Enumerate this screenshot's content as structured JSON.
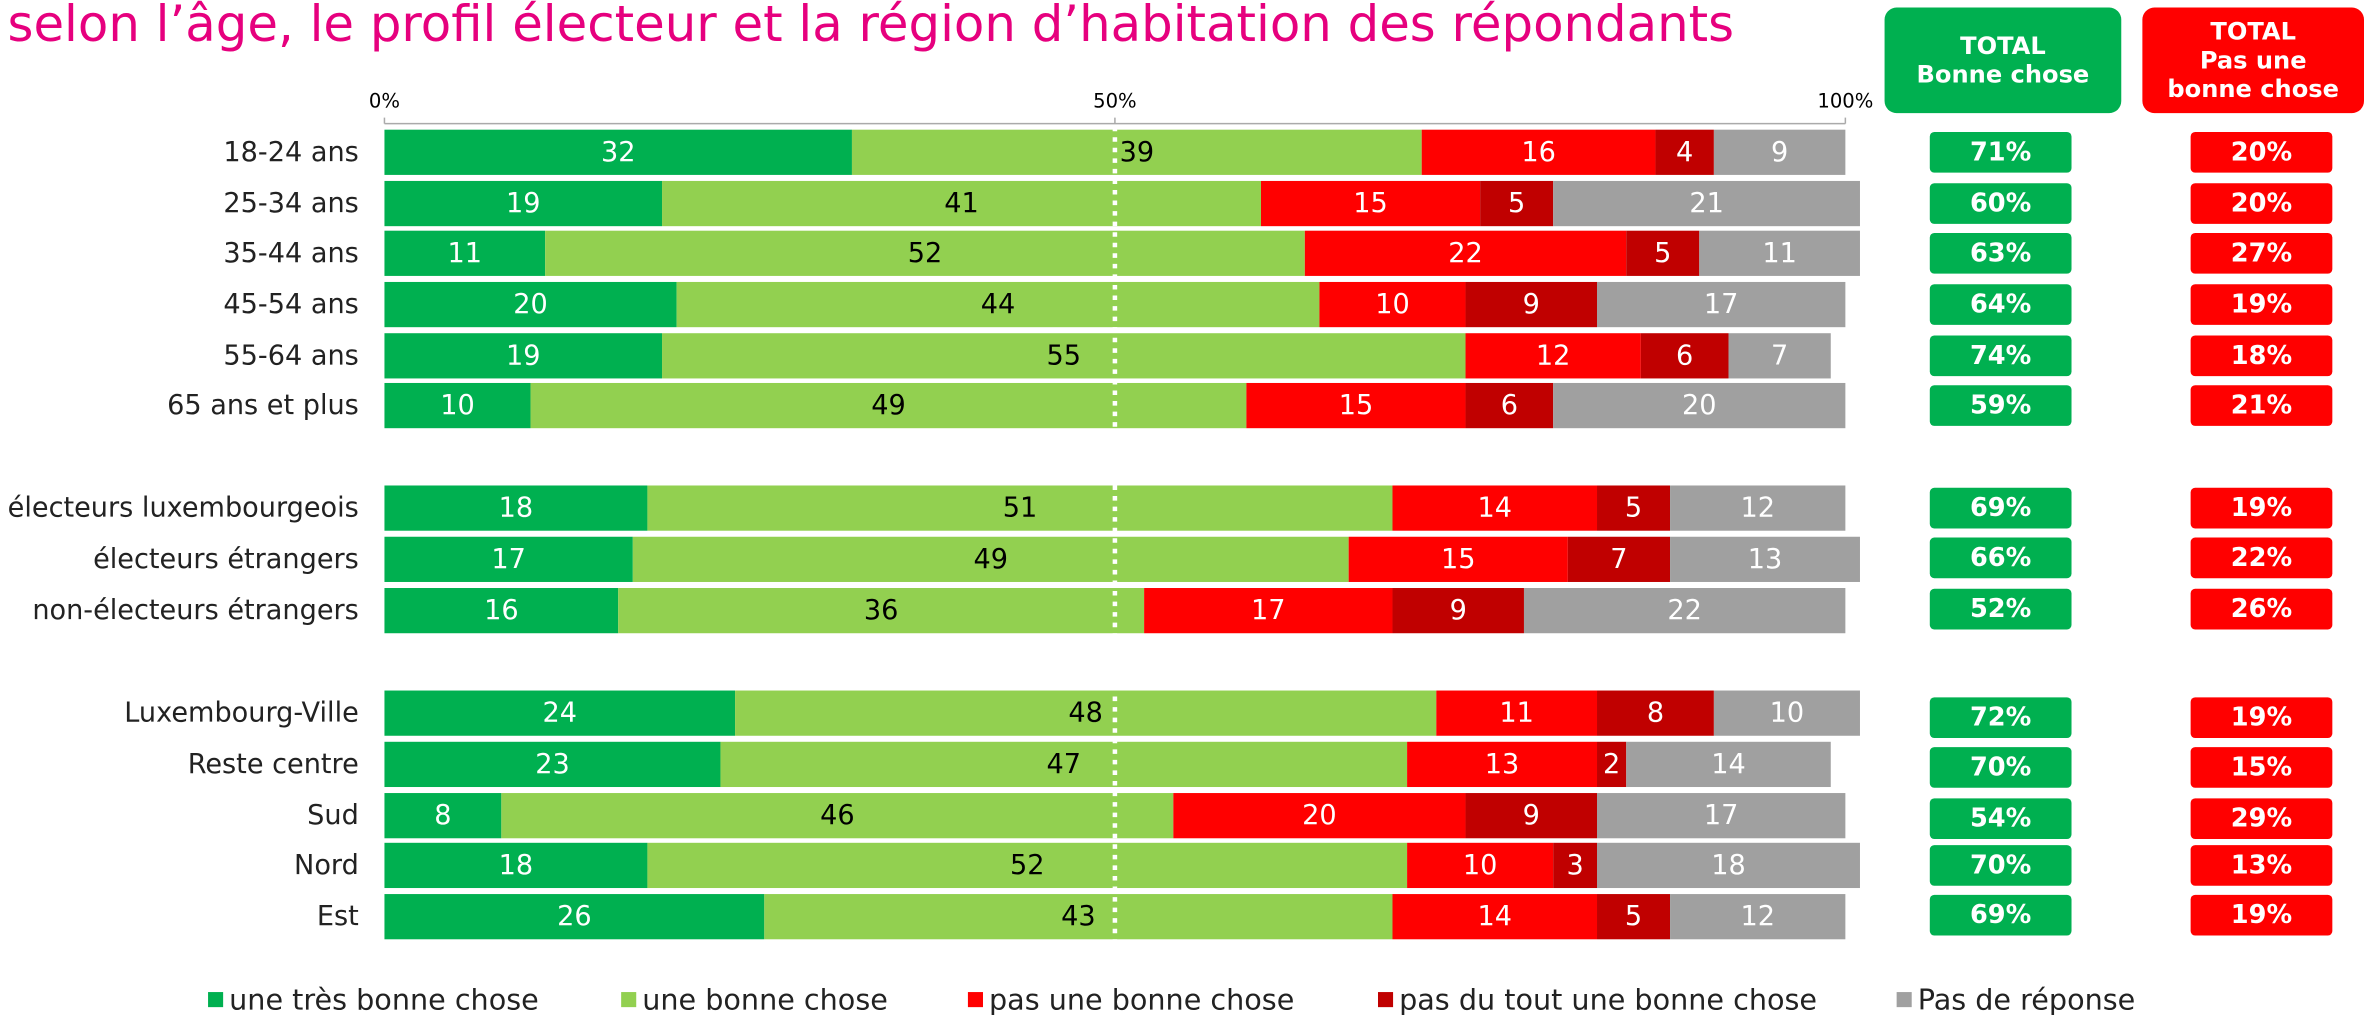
{
  "chart_data": {
    "type": "bar",
    "orientation": "horizontal",
    "stacked": true,
    "title": "selon l’âge, le profil électeur et la région d’habitation des répondants",
    "categories": [
      "18-24 ans",
      "25-34 ans",
      "35-44 ans",
      "45-54 ans",
      "55-64 ans",
      "65 ans et plus",
      "électeurs luxembourgeois",
      "électeurs étrangers",
      "non-électeurs étrangers",
      "Luxembourg-Ville",
      "Reste centre",
      "Sud",
      "Nord",
      "Est"
    ],
    "series": [
      {
        "name": "une très bonne chose",
        "color": "#00b050",
        "label_color": "#ffffff",
        "values": [
          32,
          19,
          11,
          20,
          19,
          10,
          18,
          17,
          16,
          24,
          23,
          8,
          18,
          26
        ]
      },
      {
        "name": "une bonne chose",
        "color": "#92d050",
        "label_color": "#000000",
        "values": [
          39,
          41,
          52,
          44,
          55,
          49,
          51,
          49,
          36,
          48,
          47,
          46,
          52,
          43
        ]
      },
      {
        "name": "pas une bonne chose",
        "color": "#ff0000",
        "label_color": "#ffffff",
        "values": [
          16,
          15,
          22,
          10,
          12,
          15,
          14,
          15,
          17,
          11,
          13,
          20,
          10,
          14
        ]
      },
      {
        "name": "pas du tout une bonne chose",
        "color": "#c00000",
        "label_color": "#ffffff",
        "values": [
          4,
          5,
          5,
          9,
          6,
          6,
          5,
          7,
          9,
          8,
          2,
          9,
          3,
          5
        ]
      },
      {
        "name": "Pas de réponse",
        "color": "#a0a0a0",
        "label_color": "#ffffff",
        "values": [
          9,
          21,
          11,
          17,
          7,
          20,
          12,
          13,
          22,
          10,
          14,
          17,
          18,
          12
        ]
      }
    ],
    "xlim": [
      0,
      100
    ],
    "xticks": [
      {
        "value": 0,
        "label": "0%"
      },
      {
        "value": 50,
        "label": "50%"
      },
      {
        "value": 100,
        "label": "100%"
      }
    ],
    "reference_line": 50,
    "totals": [
      {
        "title_lines": [
          "TOTAL",
          "Bonne chose"
        ],
        "color": "#00b050",
        "values": [
          71,
          60,
          63,
          64,
          74,
          59,
          69,
          66,
          52,
          72,
          70,
          54,
          70,
          69
        ],
        "value_labels": [
          "71%",
          "60%",
          "63%",
          "64%",
          "74%",
          "59%",
          "69%",
          "66%",
          "52%",
          "72%",
          "70%",
          "54%",
          "70%",
          "69%"
        ]
      },
      {
        "title_lines": [
          "TOTAL",
          "Pas une",
          "bonne chose"
        ],
        "color": "#ff0000",
        "values": [
          20,
          20,
          27,
          19,
          18,
          21,
          19,
          22,
          26,
          19,
          15,
          29,
          13,
          19
        ],
        "value_labels": [
          "20%",
          "20%",
          "27%",
          "19%",
          "18%",
          "21%",
          "19%",
          "22%",
          "26%",
          "19%",
          "15%",
          "29%",
          "13%",
          "19%"
        ]
      }
    ]
  }
}
